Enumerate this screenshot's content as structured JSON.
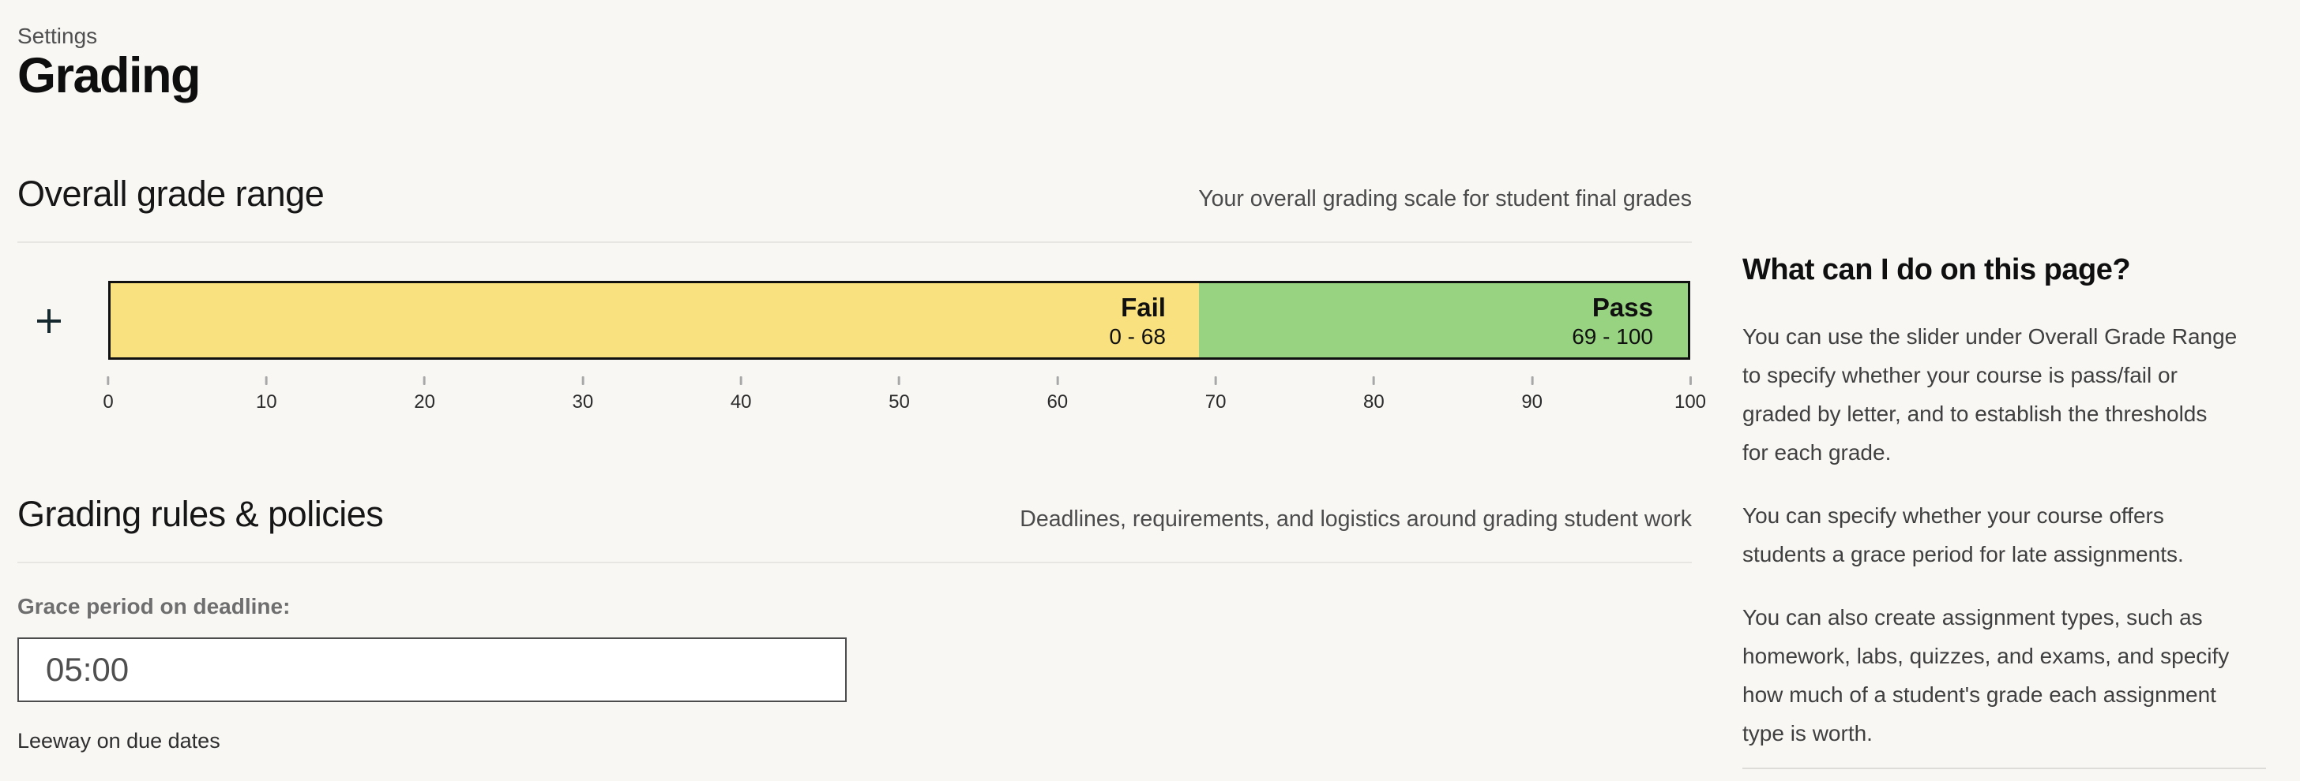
{
  "page": {
    "breadcrumb": "Settings",
    "title": "Grading"
  },
  "sections": {
    "grade_range": {
      "title": "Overall grade range",
      "description": "Your overall grading scale for student final grades"
    },
    "rules": {
      "title": "Grading rules & policies",
      "description": "Deadlines, requirements, and logistics around grading student work"
    }
  },
  "slider": {
    "segments": [
      {
        "label": "Fail",
        "range": "0 - 68",
        "color": "#f8e17e",
        "width_pct": 69
      },
      {
        "label": "Pass",
        "range": "69 - 100",
        "color": "#98d381",
        "width_pct": 31
      }
    ],
    "axis_ticks": [
      "0",
      "10",
      "20",
      "30",
      "40",
      "50",
      "60",
      "70",
      "80",
      "90",
      "100"
    ],
    "border_color": "#101010"
  },
  "grace_period": {
    "label": "Grace period on deadline:",
    "value": "05:00",
    "help": "Leeway on due dates"
  },
  "sidebar": {
    "heading": "What can I do on this page?",
    "paragraphs": [
      "You can use the slider under Overall Grade Range\nto specify whether your course is pass/fail or\ngraded by letter, and to establish the thresholds\nfor each grade.",
      "You can specify whether your course offers\nstudents a grace period for late assignments.",
      "You can also create assignment types, such as\nhomework, labs, quizzes, and exams, and specify\nhow much of a student's grade each assignment\ntype is worth."
    ]
  }
}
